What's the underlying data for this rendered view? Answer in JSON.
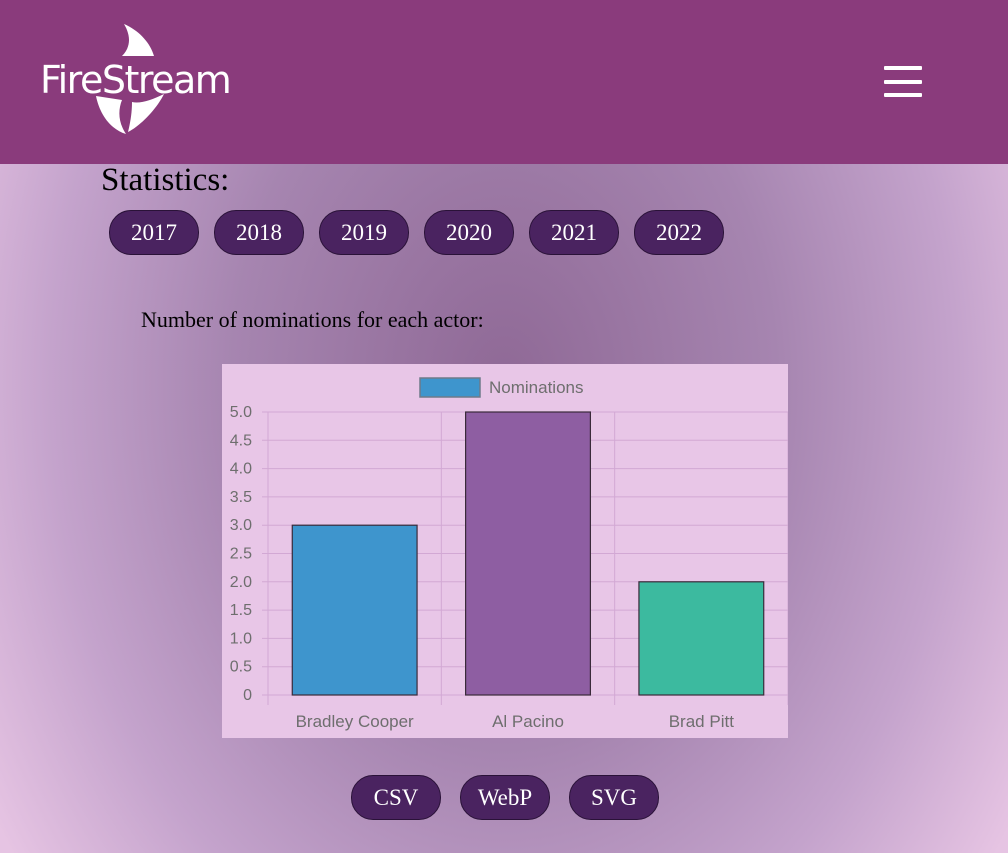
{
  "header": {
    "logo_text": "FireStream",
    "menu_icon": "hamburger-menu-icon"
  },
  "statistics": {
    "title": "Statistics:",
    "years": [
      "2017",
      "2018",
      "2019",
      "2020",
      "2021",
      "2022"
    ]
  },
  "chart_caption": "Number of nominations for each actor:",
  "chart_data": {
    "type": "bar",
    "categories": [
      "Bradley Cooper",
      "Al Pacino",
      "Brad Pitt"
    ],
    "series": [
      {
        "name": "Nominations",
        "values": [
          3,
          5,
          2
        ]
      }
    ],
    "bar_colors": [
      "#3e95cd",
      "#8e5ea2",
      "#3cba9f"
    ],
    "legend_color": "#3e95cd",
    "legend_placement": "top",
    "ylim": [
      0,
      5
    ],
    "yticks": [
      "0",
      "0.5",
      "1.0",
      "1.5",
      "2.0",
      "2.5",
      "3.0",
      "3.5",
      "4.0",
      "4.5",
      "5.0"
    ],
    "grid": true,
    "title": "",
    "xlabel": "",
    "ylabel": ""
  },
  "exports": {
    "labels": [
      "CSV",
      "WebP",
      "SVG"
    ]
  },
  "colors": {
    "header_bg": "#8a3b7c",
    "pill_bg": "#4a2360",
    "chart_bg": "#e8c6e7"
  }
}
